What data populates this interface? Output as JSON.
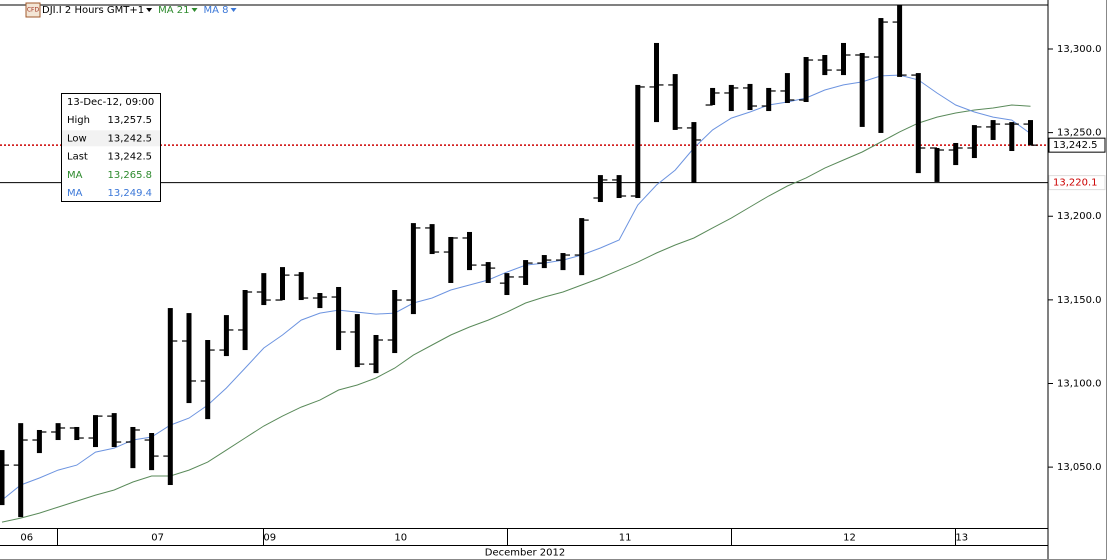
{
  "chart_data": {
    "type": "ohlc",
    "instrument_badge": "CFD",
    "title": "DJI.I 2 Hours GMT+1",
    "x_label": "December 2012",
    "categories": [
      null,
      "06",
      null,
      null,
      null,
      null,
      null,
      null,
      "07",
      null,
      null,
      null,
      null,
      null,
      "09",
      null,
      null,
      null,
      null,
      null,
      null,
      "10",
      null,
      null,
      null,
      null,
      null,
      null,
      null,
      null,
      null,
      null,
      null,
      "11",
      null,
      null,
      null,
      null,
      null,
      null,
      null,
      null,
      null,
      null,
      null,
      "12",
      null,
      null,
      null,
      null,
      null,
      "13",
      null,
      null,
      null,
      null
    ],
    "bar_color": "#000000",
    "open": [
      13050.0,
      13051.2,
      13066.2,
      13071.0,
      13073.4,
      13067.4,
      13080.5,
      13065.0,
      13066.2,
      13056.6,
      13125.4,
      13101.5,
      13120.0,
      13132.0,
      13154.7,
      13149.9,
      13164.8,
      13151.1,
      13151.7,
      13130.8,
      13111.6,
      13126.0,
      13149.9,
      13193.0,
      13178.6,
      13187.0,
      13170.8,
      13160.0,
      13163.7,
      13172.0,
      13173.8,
      13176.8,
      13210.9,
      13221.7,
      13212.1,
      13277.3,
      13278.5,
      13252.8,
      13266.5,
      13273.7,
      13276.7,
      13265.9,
      13274.9,
      13269.5,
      13293.4,
      13287.4,
      13296.4,
      13295.2,
      13316.1,
      13284.4,
      13240.8,
      13239.6,
      13240.8,
      13253.4,
      13255.1,
      13255.1
    ],
    "high": [
      13060.2,
      13076.3,
      13072.2,
      13076.3,
      13074.0,
      13081.1,
      13082.3,
      13074.0,
      13070.4,
      13145.1,
      13142.1,
      13126.0,
      13140.9,
      13155.9,
      13166.0,
      13169.6,
      13166.6,
      13154.1,
      13157.7,
      13141.5,
      13129.0,
      13155.9,
      13195.9,
      13195.3,
      13187.6,
      13190.6,
      13172.6,
      13166.0,
      13173.8,
      13176.8,
      13178.0,
      13198.9,
      13224.6,
      13224.6,
      13278.5,
      13303.6,
      13285.0,
      13256.3,
      13276.7,
      13278.5,
      13279.1,
      13276.7,
      13285.6,
      13295.2,
      13296.4,
      13303.6,
      13297.6,
      13318.5,
      13326.3,
      13285.6,
      13240.8,
      13243.8,
      13254.5,
      13257.5,
      13256.3,
      13257.5
    ],
    "low": [
      13027.3,
      13020.1,
      13058.4,
      13066.2,
      13066.2,
      13062.0,
      13062.0,
      13049.4,
      13048.2,
      13039.3,
      13088.3,
      13078.7,
      13116.4,
      13120.0,
      13146.9,
      13149.9,
      13149.9,
      13145.1,
      13120.0,
      13109.8,
      13106.2,
      13118.2,
      13141.5,
      13177.4,
      13160.1,
      13167.8,
      13160.1,
      13152.9,
      13158.9,
      13169.0,
      13167.8,
      13164.8,
      13208.5,
      13210.9,
      13210.9,
      13256.3,
      13251.6,
      13219.9,
      13266.5,
      13262.9,
      13263.5,
      13262.9,
      13267.7,
      13268.3,
      13284.4,
      13284.4,
      13253.4,
      13249.8,
      13283.3,
      13225.8,
      13220.5,
      13230.6,
      13234.8,
      13245.6,
      13239.0,
      13242.5
    ],
    "close": [
      13051.2,
      13066.2,
      13071.0,
      13073.4,
      13067.4,
      13080.5,
      13065.0,
      13072.2,
      13056.6,
      13125.4,
      13101.5,
      13120.0,
      13132.0,
      13154.7,
      13149.9,
      13164.8,
      13151.1,
      13151.7,
      13130.8,
      13111.6,
      13126.0,
      13149.9,
      13193.0,
      13178.6,
      13187.0,
      13170.8,
      13169.0,
      13163.7,
      13172.0,
      13173.8,
      13176.8,
      13197.7,
      13221.7,
      13212.1,
      13277.3,
      13278.5,
      13252.8,
      13245.6,
      13273.7,
      13276.7,
      13265.9,
      13274.9,
      13269.5,
      13293.4,
      13287.4,
      13296.4,
      13295.2,
      13316.1,
      13284.4,
      13240.8,
      13239.6,
      13240.8,
      13253.4,
      13255.1,
      13255.1,
      13242.5
    ],
    "series": [
      {
        "name": "MA 21",
        "color": "#2e8b2e",
        "line_color": "#5a8a5a",
        "values": [
          13017.1,
          13019.5,
          13022.5,
          13026.1,
          13029.7,
          13033.3,
          13036.3,
          13041.1,
          13044.7,
          13044.7,
          13048.2,
          13053.0,
          13060.2,
          13067.4,
          13074.6,
          13080.5,
          13085.9,
          13090.1,
          13096.1,
          13099.1,
          13103.3,
          13109.2,
          13117.0,
          13123.0,
          13129.0,
          13133.8,
          13137.9,
          13142.7,
          13148.1,
          13151.7,
          13154.7,
          13158.9,
          13163.1,
          13167.8,
          13172.6,
          13178.0,
          13182.8,
          13187.0,
          13193.0,
          13198.9,
          13205.5,
          13212.1,
          13218.1,
          13222.9,
          13228.8,
          13233.6,
          13238.4,
          13244.4,
          13250.4,
          13255.7,
          13259.3,
          13261.7,
          13263.5,
          13264.7,
          13266.5,
          13265.8
        ]
      },
      {
        "name": "MA 8",
        "color": "#3c78d8",
        "line_color": "#6d94e0",
        "values": [
          13030.3,
          13039.3,
          13043.5,
          13048.2,
          13051.2,
          13059.0,
          13061.4,
          13066.2,
          13068.0,
          13075.1,
          13079.3,
          13087.1,
          13097.3,
          13109.2,
          13121.2,
          13129.0,
          13137.9,
          13142.1,
          13143.9,
          13142.7,
          13141.5,
          13142.1,
          13148.1,
          13151.1,
          13155.9,
          13158.9,
          13161.9,
          13166.6,
          13170.8,
          13172.0,
          13173.8,
          13176.8,
          13181.0,
          13185.8,
          13206.7,
          13218.7,
          13227.6,
          13240.8,
          13251.6,
          13258.7,
          13262.3,
          13266.5,
          13268.3,
          13270.7,
          13275.5,
          13278.5,
          13280.3,
          13283.9,
          13284.4,
          13281.5,
          13273.7,
          13266.5,
          13262.3,
          13259.3,
          13257.5,
          13249.4
        ]
      }
    ],
    "last_price": {
      "value": 13242.5,
      "label": "13,242.5",
      "color": "#cc0000"
    },
    "level": {
      "value": 13220.1,
      "label": "13,220.1",
      "color": "#cc0000"
    },
    "ylim": [
      13013.6,
      13326.3
    ],
    "yticks": [
      {
        "value": 13050,
        "label": "13,050.0"
      },
      {
        "value": 13100,
        "label": "13,100.0"
      },
      {
        "value": 13150,
        "label": "13,150.0"
      },
      {
        "value": 13200,
        "label": "13,200.0"
      },
      {
        "value": 13250,
        "label": "13,250.0"
      },
      {
        "value": 13300,
        "label": "13,300.0"
      }
    ],
    "grid": false,
    "tooltip": {
      "title": "13-Dec-12, 09:00",
      "rows": [
        {
          "name": "High",
          "value": 13257.5,
          "label": "13,257.5",
          "color": "#000000"
        },
        {
          "name": "Low",
          "value": 13242.5,
          "label": "13,242.5",
          "color": "#000000"
        },
        {
          "name": "Last",
          "value": 13242.5,
          "label": "13,242.5",
          "color": "#000000"
        },
        {
          "name": "MA",
          "value": 13265.8,
          "label": "13,265.8",
          "color": "#2e8b2e"
        },
        {
          "name": "MA",
          "value": 13249.4,
          "label": "13,249.4",
          "color": "#3c78d8"
        }
      ]
    }
  }
}
